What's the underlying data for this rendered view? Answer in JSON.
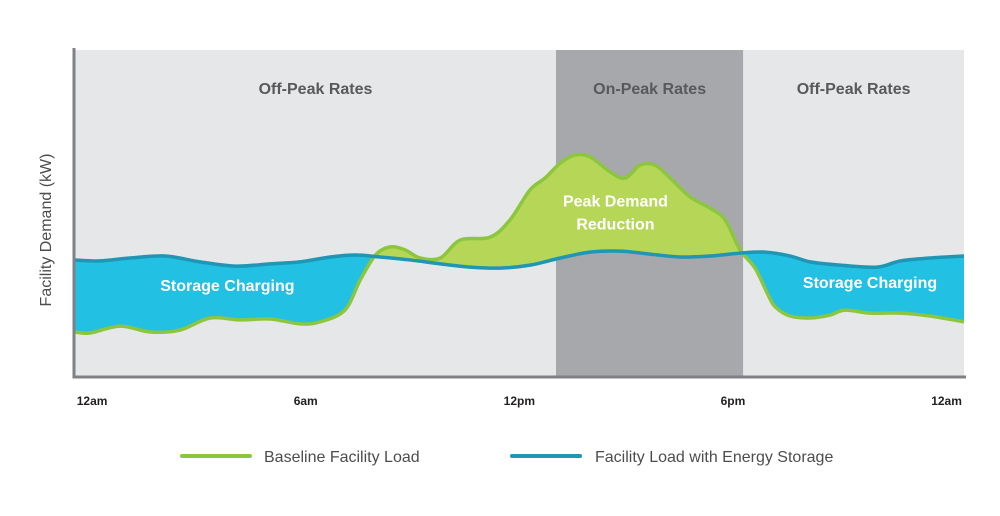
{
  "chart_data": {
    "type": "line",
    "title": "",
    "xlabel": "",
    "ylabel": "Facility Demand (kW)",
    "xlim": [
      -0.48,
      24.49
    ],
    "ylim": [
      0,
      100
    ],
    "grid": false,
    "x_ticks": [
      {
        "value": 0,
        "label": "12am"
      },
      {
        "value": 6,
        "label": "6am"
      },
      {
        "value": 12,
        "label": "12pm"
      },
      {
        "value": 18,
        "label": "6pm"
      },
      {
        "value": 24,
        "label": "12am"
      }
    ],
    "rate_periods": [
      {
        "label": "Off-Peak Rates",
        "start": -0.48,
        "end": 13.03,
        "color": "#e6e7e9"
      },
      {
        "label": "On-Peak Rates",
        "start": 13.03,
        "end": 18.29,
        "color": "#a7a8ab"
      },
      {
        "label": "Off-Peak Rates",
        "start": 18.29,
        "end": 24.49,
        "color": "#e6e7e9"
      }
    ],
    "annotations": [
      {
        "text": "Storage Charging",
        "x": 3.8,
        "y": 26
      },
      {
        "text": "Storage Charging",
        "x": 21.85,
        "y": 27
      },
      {
        "text": "Peak Demand",
        "x": 14.7,
        "y": 52
      },
      {
        "text": "Reduction",
        "x": 14.7,
        "y": 45
      }
    ],
    "legend_position": "bottom",
    "series": [
      {
        "name": "Baseline Facility Load",
        "color": "#8cc63f",
        "x": [
          -0.48,
          -0.06,
          0.79,
          1.63,
          2.47,
          3.31,
          4.16,
          5.0,
          5.84,
          6.4,
          7.1,
          7.53,
          7.96,
          8.37,
          8.79,
          9.21,
          9.78,
          10.34,
          11.18,
          11.74,
          12.3,
          12.72,
          13.15,
          13.57,
          13.99,
          14.55,
          14.97,
          15.39,
          15.81,
          16.24,
          16.8,
          17.36,
          17.78,
          18.2,
          18.62,
          18.99,
          19.19,
          19.6,
          20.17,
          20.73,
          21.15,
          21.85,
          22.7,
          23.54,
          24.49
        ],
        "y": [
          13.5,
          13.2,
          15.3,
          13.5,
          14.1,
          17.8,
          17.2,
          17.5,
          16.0,
          16.6,
          20.2,
          29.4,
          37.1,
          39.6,
          38.7,
          36.2,
          36.2,
          41.7,
          42.6,
          47.9,
          57.1,
          60.7,
          65.3,
          67.8,
          67.2,
          62.6,
          60.7,
          64.7,
          64.7,
          60.7,
          54.9,
          51.5,
          47.9,
          38.7,
          33.1,
          24.8,
          21.2,
          18.4,
          17.8,
          18.7,
          20.2,
          19.3,
          19.3,
          18.4,
          16.6
        ]
      },
      {
        "name": "Facility Load with Energy Storage",
        "color": "#1e96b4",
        "x": [
          -0.48,
          0.22,
          1.07,
          2.05,
          3.03,
          4.02,
          5.0,
          5.84,
          6.69,
          7.39,
          8.09,
          8.93,
          9.78,
          10.62,
          11.46,
          12.3,
          13.15,
          13.99,
          14.83,
          15.67,
          16.52,
          17.36,
          18.2,
          18.9,
          19.61,
          20.17,
          21.01,
          22.05,
          22.7,
          23.54,
          24.49
        ],
        "y": [
          35.6,
          35.3,
          36.2,
          36.8,
          35.0,
          33.7,
          34.4,
          35.0,
          36.5,
          37.1,
          36.5,
          35.6,
          34.4,
          33.4,
          33.1,
          34.0,
          36.2,
          38.0,
          38.3,
          37.4,
          36.5,
          36.8,
          37.7,
          38.0,
          36.8,
          35.0,
          34.0,
          33.4,
          35.3,
          36.2,
          36.8
        ]
      }
    ],
    "fill_colors": {
      "storage_charging": "#22c0e2",
      "peak_reduction": "#b5d657",
      "axis": "#808184"
    }
  }
}
